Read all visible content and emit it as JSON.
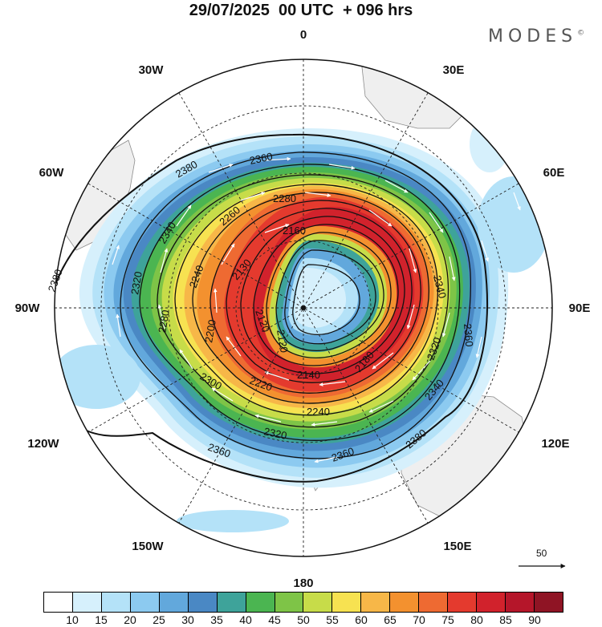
{
  "header": {
    "title": "29/07/2025  00 UTC  + 096 hrs",
    "brand": "MODES",
    "brand_mark": "©"
  },
  "map": {
    "projection": "south-polar-stereographic",
    "longitude_labels": {
      "top": "0",
      "bottom": "180",
      "left": "90W",
      "right": "90E",
      "lon_30w": "30W",
      "lon_30e": "30E",
      "lon_60w": "60W",
      "lon_60e": "60E",
      "lon_120w": "120W",
      "lon_120e": "120E",
      "lon_150w": "150W",
      "lon_150e": "150E"
    },
    "height_contours": {
      "c2380_a": "2380",
      "c2380_b": "2380",
      "c2380_c": "2380",
      "c2360_a": "2360",
      "c2360_b": "2360",
      "c2360_c": "2360",
      "c2360_d": "2360",
      "c2340_a": "2340",
      "c2340_b": "2340",
      "c2340_c": "2340",
      "c2320_a": "2320",
      "c2320_b": "2320",
      "c2320_c": "2320",
      "c2300": "2300",
      "c2280_a": "2280",
      "c2280_b": "2280",
      "c2260": "2260",
      "c2240_a": "2240",
      "c2240_b": "2240",
      "c2220": "2220",
      "c2200": "2200",
      "c2180": "2180",
      "c2160": "2160",
      "c2140": "2140",
      "c2130": "2130",
      "c2120_a": "2120",
      "c2120_b": "2120"
    },
    "reference_vector": "50"
  },
  "colorbar": {
    "colors": [
      "#ffffff",
      "#d6f0fc",
      "#b4e2f8",
      "#8ccaf0",
      "#62a8dc",
      "#4a88c4",
      "#3ea39a",
      "#4bb551",
      "#7ec447",
      "#c7dc49",
      "#f7e251",
      "#f7b748",
      "#f3912f",
      "#ee6a32",
      "#e43a2e",
      "#d1222c",
      "#b5162a",
      "#8f1424"
    ],
    "labels": [
      "10",
      "15",
      "20",
      "25",
      "30",
      "35",
      "40",
      "45",
      "50",
      "55",
      "60",
      "65",
      "70",
      "75",
      "80",
      "85",
      "90"
    ]
  }
}
